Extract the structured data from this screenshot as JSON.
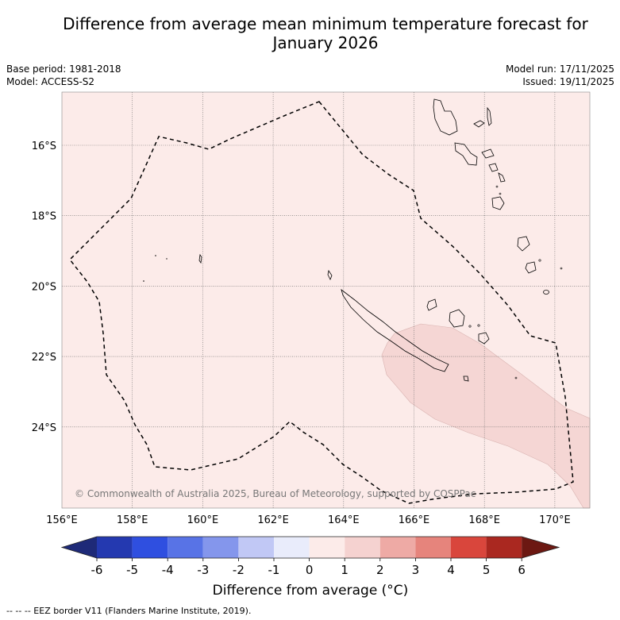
{
  "title_line1": "Difference from average mean minimum temperature forecast for",
  "title_line2": "January 2026",
  "base_period": "Base period: 1981-2018",
  "model": "Model: ACCESS-S2",
  "model_run": "Model run: 17/11/2025",
  "issued": "Issued: 19/11/2025",
  "copyright": "© Commonwealth of Australia 2025, Bureau of Meteorology, supported by COSPPac",
  "lon_labels": [
    "156°E",
    "158°E",
    "160°E",
    "162°E",
    "164°E",
    "166°E",
    "168°E",
    "170°E"
  ],
  "lat_labels": [
    "16°S",
    "18°S",
    "20°S",
    "22°S",
    "24°S"
  ],
  "colorbar": {
    "ticks": [
      "-6",
      "-5",
      "-4",
      "-3",
      "-2",
      "-1",
      "0",
      "1",
      "2",
      "3",
      "4",
      "5",
      "6"
    ],
    "colors": [
      "#1e2a78",
      "#2439b0",
      "#2f4fe0",
      "#5873e6",
      "#8496ec",
      "#c1c8f5",
      "#e9ecfb",
      "#fcebe9",
      "#f5d2d0",
      "#eeaaa5",
      "#e6847c",
      "#d9463c",
      "#aa2820",
      "#6c1812"
    ],
    "title": "Difference from average (°C)"
  },
  "footnote": "-- -- -- EEZ border V11 (Flanders Marine Institute, 2019).",
  "colors": {
    "background": "#fcebe9",
    "anomaly": "#f5d6d4"
  },
  "chart_data": {
    "type": "map",
    "region": "New Caledonia EEZ",
    "lon_range": [
      156,
      171
    ],
    "lat_range": [
      -26.2,
      -14.4
    ],
    "anomaly_default_category": "0 to 1",
    "anomaly_region_category": "1 to 2",
    "anomaly_region_approx_extent": "SE of New Caledonia, ~165°E-171°E, ~21°S-26°S"
  }
}
